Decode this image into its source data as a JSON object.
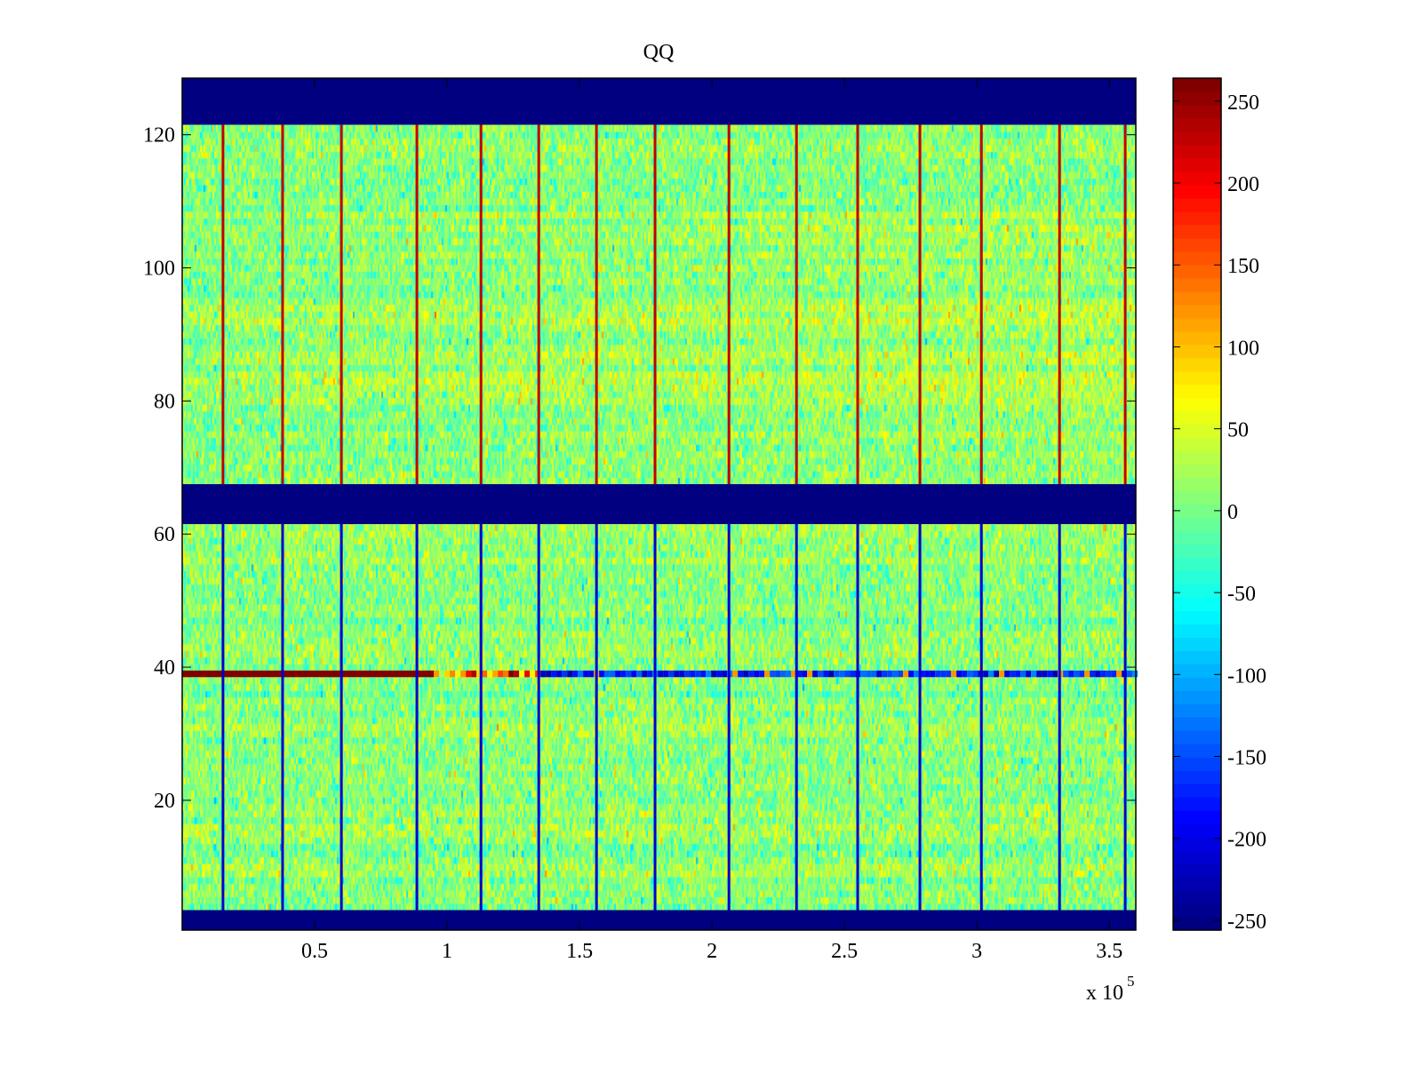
{
  "chart_data": {
    "type": "heatmap",
    "title": "QQ",
    "xlabel": "",
    "ylabel": "",
    "x_exponent_label": "x 10",
    "x_exponent": "5",
    "xlim": [
      0,
      360000
    ],
    "ylim": [
      0.5,
      128.5
    ],
    "xticks": [
      50000,
      100000,
      150000,
      200000,
      250000,
      300000,
      350000
    ],
    "xtick_labels": [
      "0.5",
      "1",
      "1.5",
      "2",
      "2.5",
      "3",
      "3.5"
    ],
    "yticks": [
      20,
      40,
      60,
      80,
      100,
      120
    ],
    "ytick_labels": [
      "20",
      "40",
      "60",
      "80",
      "100",
      "120"
    ],
    "colormap": "jet",
    "clim": [
      -256,
      264
    ],
    "colorbar": {
      "location": "right",
      "ticks": [
        -250,
        -200,
        -150,
        -100,
        -50,
        0,
        50,
        100,
        150,
        200,
        250
      ],
      "tick_labels": [
        "-250",
        "-200",
        "-150",
        "-100",
        "-50",
        "0",
        "50",
        "100",
        "150",
        "200",
        "250"
      ]
    },
    "background": {
      "mean": 10,
      "std": 28,
      "note": "noisy values roughly -80 to 80"
    },
    "empty_row_bands": [
      {
        "rows": [
          122,
          128
        ],
        "value": -256
      },
      {
        "rows": [
          62,
          67
        ],
        "value": -256
      },
      {
        "rows": [
          1,
          3
        ],
        "value": -256
      }
    ],
    "vertical_lines": {
      "x": [
        15400,
        37900,
        60100,
        88600,
        112800,
        134600,
        156400,
        178500,
        206400,
        231900,
        255000,
        278500,
        301700,
        331200,
        356000
      ],
      "value_upper_rows_68_121": 230,
      "value_lower_rows_4_61": -210
    },
    "highlight_row": {
      "row": 39,
      "segments": [
        {
          "x": [
            0,
            95000
          ],
          "value": 264
        },
        {
          "x": [
            95000,
            360000
          ],
          "value": "mixed, mostly -100 to -230 with some 100-200 spots"
        }
      ]
    }
  }
}
